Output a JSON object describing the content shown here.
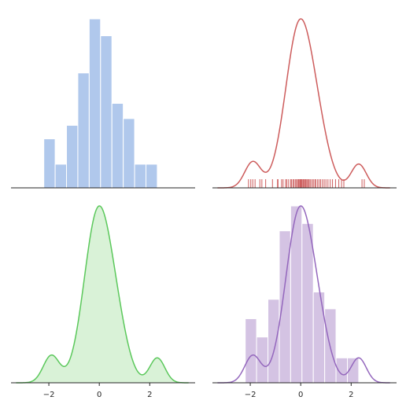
{
  "chart_data": [
    {
      "type": "bar",
      "panel": "top-left",
      "bar_color": "#b0c8ec",
      "bin_width": 0.45,
      "bins": [
        {
          "x0": -2.2,
          "x1": -1.75,
          "height": 0.29
        },
        {
          "x0": -1.75,
          "x1": -1.3,
          "height": 0.14
        },
        {
          "x0": -1.3,
          "x1": -0.85,
          "height": 0.37
        },
        {
          "x0": -0.85,
          "x1": -0.4,
          "height": 0.68
        },
        {
          "x0": -0.4,
          "x1": 0.05,
          "height": 1.0
        },
        {
          "x0": 0.05,
          "x1": 0.5,
          "height": 0.9
        },
        {
          "x0": 0.5,
          "x1": 0.95,
          "height": 0.5
        },
        {
          "x0": 0.95,
          "x1": 1.4,
          "height": 0.41
        },
        {
          "x0": 1.4,
          "x1": 1.85,
          "height": 0.14
        },
        {
          "x0": 1.85,
          "x1": 2.3,
          "height": 0.14
        }
      ],
      "xlim": [
        -3.5,
        3.8
      ],
      "ylim": [
        0,
        1.05
      ],
      "grid": false
    },
    {
      "type": "line",
      "panel": "top-right",
      "line_color": "#cd5c5c",
      "rug_color": "#cd5c5c",
      "kde": "sample",
      "rug": [
        -2.07,
        -1.98,
        -1.9,
        -1.81,
        -1.62,
        -1.54,
        -1.39,
        -1.12,
        -0.92,
        -0.9,
        -0.76,
        -0.7,
        -0.6,
        -0.55,
        -0.48,
        -0.4,
        -0.36,
        -0.3,
        -0.26,
        -0.2,
        -0.17,
        -0.12,
        -0.09,
        -0.06,
        -0.02,
        0.01,
        0.03,
        0.06,
        0.1,
        0.12,
        0.16,
        0.19,
        0.22,
        0.27,
        0.3,
        0.34,
        0.39,
        0.45,
        0.5,
        0.56,
        0.6,
        0.67,
        0.73,
        0.79,
        0.86,
        0.93,
        1.0,
        1.08,
        1.17,
        1.26,
        1.38,
        1.51,
        1.62,
        1.71,
        2.43,
        2.52
      ],
      "xlim": [
        -3.5,
        3.8
      ],
      "ylim": [
        0,
        0.5
      ],
      "grid": false
    },
    {
      "type": "area",
      "panel": "bottom-left",
      "line_color": "#5bc85b",
      "fill_color": "#d9f2d7",
      "kde": "sample",
      "x_ticks": [
        -2,
        0,
        2
      ],
      "x_tick_labels": [
        "−2",
        "0",
        "2"
      ],
      "xlim": [
        -3.5,
        3.8
      ],
      "ylim": [
        0,
        0.5
      ],
      "grid": false
    },
    {
      "type": "bar",
      "panel": "bottom-right",
      "bar_color": "#d4c3e3",
      "line_color": "#9467bd",
      "kde": "sample",
      "bins": [
        {
          "x0": -2.2,
          "x1": -1.75,
          "height": 0.175
        },
        {
          "x0": -1.75,
          "x1": -1.3,
          "height": 0.125
        },
        {
          "x0": -1.3,
          "x1": -0.85,
          "height": 0.228
        },
        {
          "x0": -0.85,
          "x1": -0.4,
          "height": 0.415
        },
        {
          "x0": -0.4,
          "x1": 0.05,
          "height": 0.483
        },
        {
          "x0": 0.05,
          "x1": 0.5,
          "height": 0.435
        },
        {
          "x0": 0.5,
          "x1": 0.95,
          "height": 0.248
        },
        {
          "x0": 0.95,
          "x1": 1.4,
          "height": 0.202
        },
        {
          "x0": 1.4,
          "x1": 1.85,
          "height": 0.068
        },
        {
          "x0": 1.85,
          "x1": 2.3,
          "height": 0.068
        }
      ],
      "x_ticks": [
        -2,
        0,
        2
      ],
      "x_tick_labels": [
        "−2",
        "0",
        "2"
      ],
      "xlim": [
        -3.5,
        3.8
      ],
      "ylim": [
        0,
        0.5
      ],
      "grid": false
    }
  ]
}
